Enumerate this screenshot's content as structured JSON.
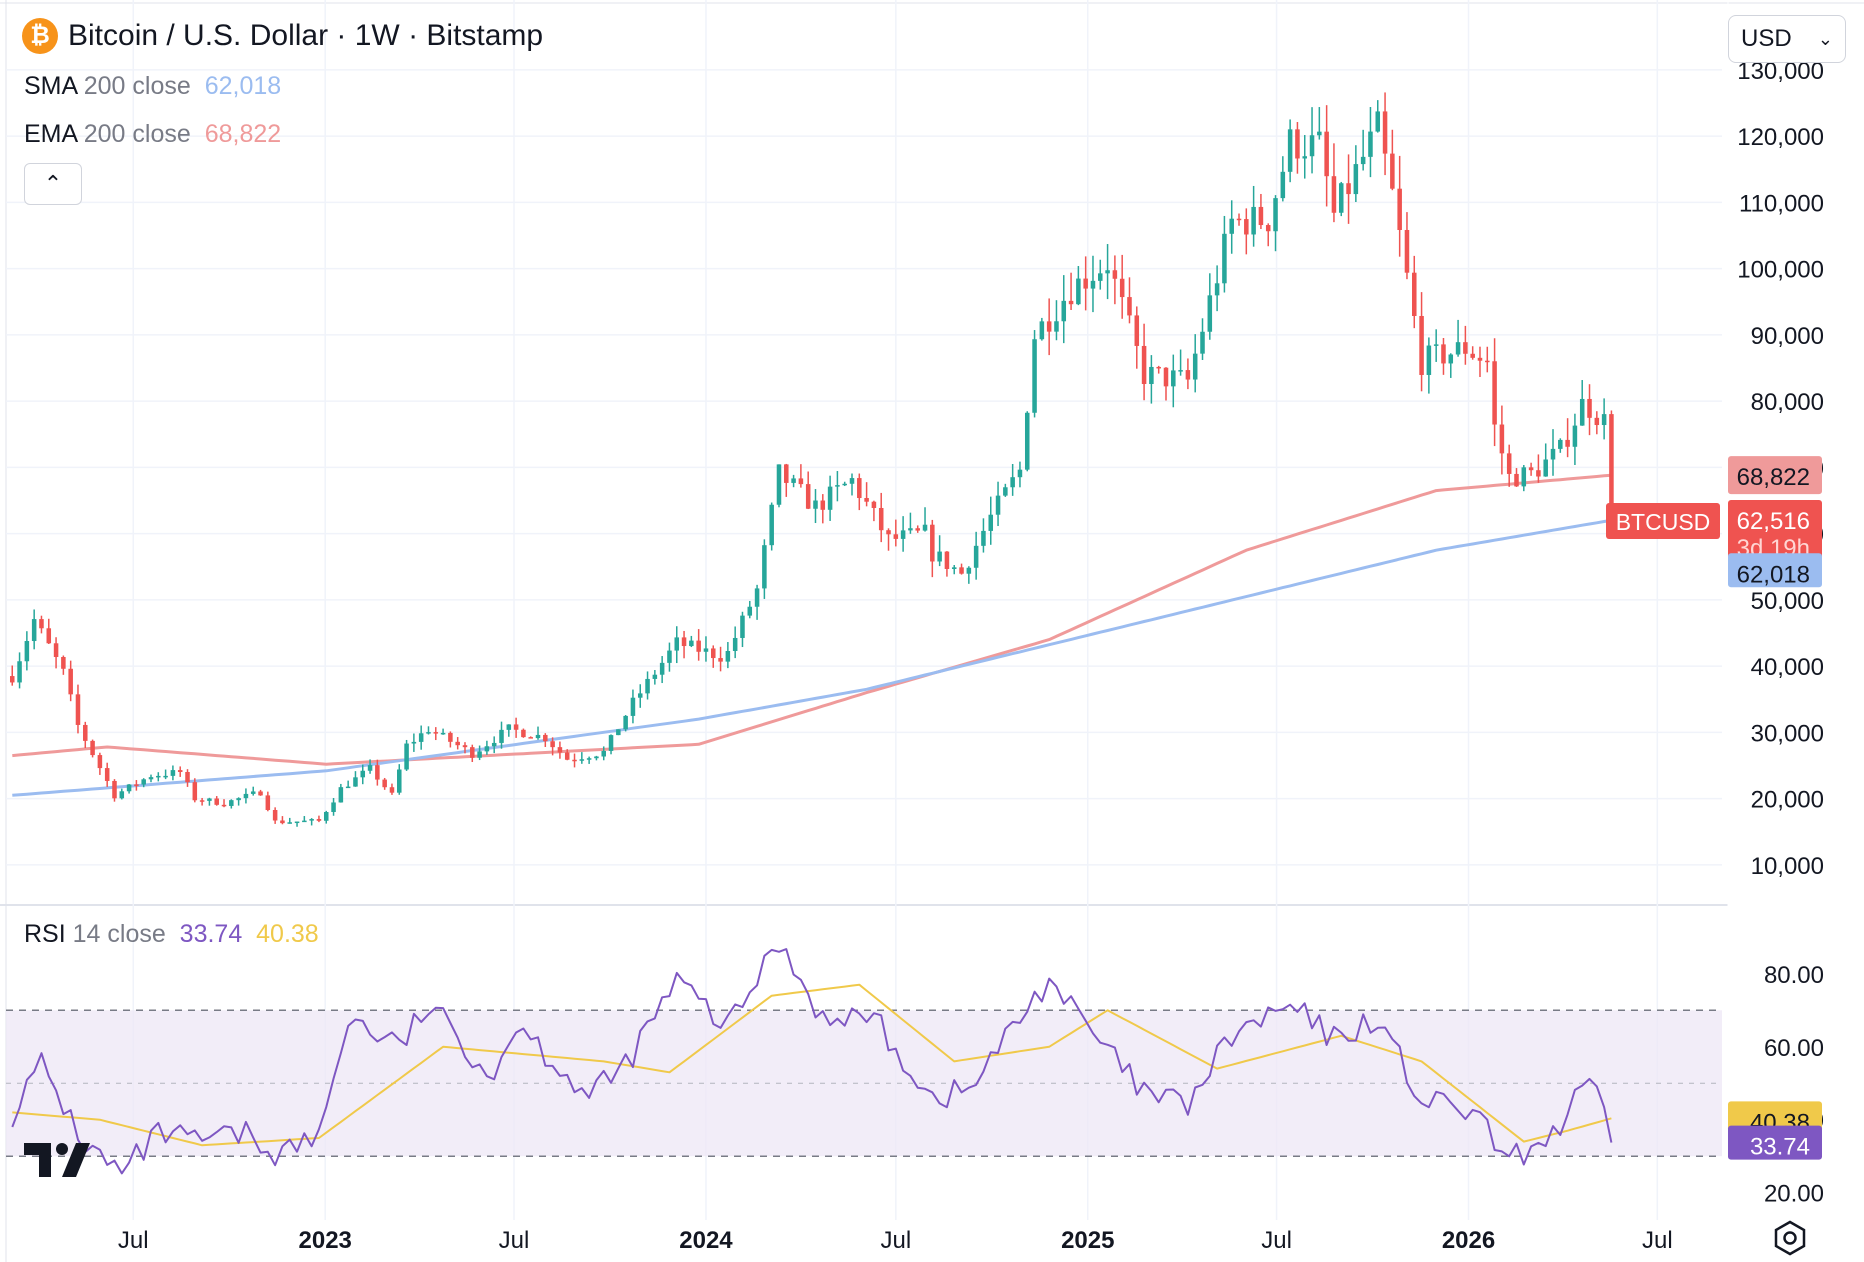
{
  "header": {
    "coin_symbol": "₿",
    "title": "Bitcoin / U.S. Dollar · 1W · Bitstamp",
    "currency_select": "USD"
  },
  "legend": {
    "sma_name": "SMA",
    "sma_params": "200 close",
    "sma_value": "62,018",
    "ema_name": "EMA",
    "ema_params": "200 close",
    "ema_value": "68,822",
    "rsi_name": "RSI",
    "rsi_params": "14 close",
    "rsi_value": "33.74",
    "rsi_ma_value": "40.38"
  },
  "colors": {
    "up": "#26a69a",
    "down": "#ef5350",
    "sma": "#9bbcf0",
    "ema": "#ef9a9a",
    "rsi": "#7e57c2",
    "rsi_ma": "#f0c94a",
    "rsi_band": "#ede7f6",
    "grid": "#f0f3fa",
    "axis_text": "#131722"
  },
  "chart_data": [
    {
      "type": "candlestick",
      "symbol": "BTCUSD",
      "interval": "1W",
      "exchange": "Bitstamp",
      "scale": "linear",
      "ylim": [
        5000,
        133000
      ],
      "yticks": [
        10000,
        20000,
        30000,
        40000,
        50000,
        60000,
        70000,
        80000,
        90000,
        100000,
        110000,
        120000,
        130000
      ],
      "ytick_labels": [
        "10,000",
        "20,000",
        "30,000",
        "40,000",
        "50,000",
        "60,000",
        "70,000",
        "80,000",
        "90,000",
        "100,000",
        "110,000",
        "120,000",
        "130,000"
      ],
      "x_range": [
        "2022-03-01",
        "2026-09-01"
      ],
      "x_ticks": [
        {
          "date": "2022-07-01",
          "label": "Jul",
          "bold": false
        },
        {
          "date": "2023-01-01",
          "label": "2023",
          "bold": true
        },
        {
          "date": "2023-07-01",
          "label": "Jul",
          "bold": false
        },
        {
          "date": "2024-01-01",
          "label": "2024",
          "bold": true
        },
        {
          "date": "2024-07-01",
          "label": "Jul",
          "bold": false
        },
        {
          "date": "2025-01-01",
          "label": "2025",
          "bold": true
        },
        {
          "date": "2025-07-01",
          "label": "Jul",
          "bold": false
        },
        {
          "date": "2026-01-01",
          "label": "2026",
          "bold": true
        },
        {
          "date": "2026-07-01",
          "label": "Jul",
          "bold": false
        }
      ],
      "close_anchors": [
        [
          "2022-03-07",
          38500
        ],
        [
          "2022-03-28",
          47000
        ],
        [
          "2022-04-25",
          39000
        ],
        [
          "2022-05-09",
          31000
        ],
        [
          "2022-06-13",
          20500
        ],
        [
          "2022-07-18",
          23500
        ],
        [
          "2022-08-15",
          24000
        ],
        [
          "2022-08-29",
          20000
        ],
        [
          "2022-09-26",
          19300
        ],
        [
          "2022-10-31",
          21000
        ],
        [
          "2022-11-14",
          16500
        ],
        [
          "2022-12-26",
          16600
        ],
        [
          "2023-01-16",
          21500
        ],
        [
          "2023-02-13",
          24500
        ],
        [
          "2023-03-06",
          20500
        ],
        [
          "2023-03-20",
          28000
        ],
        [
          "2023-04-10",
          30500
        ],
        [
          "2023-05-22",
          26800
        ],
        [
          "2023-06-26",
          30500
        ],
        [
          "2023-07-31",
          29200
        ],
        [
          "2023-08-21",
          26000
        ],
        [
          "2023-09-25",
          27000
        ],
        [
          "2023-10-23",
          34500
        ],
        [
          "2023-12-04",
          43500
        ],
        [
          "2023-12-25",
          42500
        ],
        [
          "2024-01-15",
          41500
        ],
        [
          "2024-01-22",
          42000
        ],
        [
          "2024-02-19",
          51500
        ],
        [
          "2024-03-11",
          69000
        ],
        [
          "2024-04-15",
          64000
        ],
        [
          "2024-05-20",
          68000
        ],
        [
          "2024-06-24",
          59000
        ],
        [
          "2024-07-29",
          60000
        ],
        [
          "2024-08-05",
          57000
        ],
        [
          "2024-09-02",
          54000
        ],
        [
          "2024-09-30",
          62500
        ],
        [
          "2024-10-28",
          69500
        ],
        [
          "2024-11-11",
          90000
        ],
        [
          "2024-12-16",
          97000
        ],
        [
          "2025-01-20",
          101000
        ],
        [
          "2025-02-24",
          84000
        ],
        [
          "2025-04-07",
          83000
        ],
        [
          "2025-05-19",
          107000
        ],
        [
          "2025-06-23",
          107500
        ],
        [
          "2025-07-14",
          119000
        ],
        [
          "2025-08-11",
          118500
        ],
        [
          "2025-08-25",
          108000
        ],
        [
          "2025-10-06",
          121000
        ],
        [
          "2025-10-20",
          111000
        ],
        [
          "2025-11-17",
          86000
        ],
        [
          "2025-12-29",
          88000
        ],
        [
          "2026-01-19",
          86000
        ],
        [
          "2026-01-26",
          76000
        ],
        [
          "2026-02-09",
          68500
        ],
        [
          "2026-03-02",
          69000
        ],
        [
          "2026-03-30",
          72500
        ],
        [
          "2026-04-20",
          79500
        ],
        [
          "2026-04-27",
          79000
        ],
        [
          "2026-05-11",
          77000
        ],
        [
          "2026-05-18",
          62516
        ]
      ],
      "sma_200_anchors": [
        [
          "2022-03-07",
          20500
        ],
        [
          "2023-01-02",
          24200
        ],
        [
          "2023-12-25",
          32000
        ],
        [
          "2024-06-03",
          36500
        ],
        [
          "2024-12-02",
          43500
        ],
        [
          "2025-06-02",
          50500
        ],
        [
          "2025-12-01",
          57500
        ],
        [
          "2026-05-18",
          62018
        ]
      ],
      "ema_200_anchors": [
        [
          "2022-03-07",
          26500
        ],
        [
          "2022-06-06",
          27800
        ],
        [
          "2023-01-02",
          25200
        ],
        [
          "2023-12-25",
          28200
        ],
        [
          "2024-06-03",
          36000
        ],
        [
          "2024-11-25",
          44000
        ],
        [
          "2025-06-02",
          57500
        ],
        [
          "2025-12-01",
          66500
        ],
        [
          "2026-05-18",
          68822
        ]
      ],
      "last_price": {
        "symbol": "BTCUSD",
        "value": "62,516",
        "countdown": "3d 19h"
      },
      "sma_label": "62,018",
      "ema_label": "68,822"
    },
    {
      "type": "line",
      "name": "RSI 14 close",
      "ylim": [
        18,
        92
      ],
      "yticks": [
        20,
        40,
        60,
        80
      ],
      "ytick_labels": [
        "20.00",
        "40.00",
        "60.00",
        "80.00"
      ],
      "band": [
        30,
        70
      ],
      "midline": 50,
      "rsi_anchors": [
        [
          "2022-03-07",
          42
        ],
        [
          "2022-04-04",
          55
        ],
        [
          "2022-05-16",
          33
        ],
        [
          "2022-06-20",
          25
        ],
        [
          "2022-07-25",
          36
        ],
        [
          "2022-08-29",
          34
        ],
        [
          "2022-10-17",
          36
        ],
        [
          "2022-11-14",
          31
        ],
        [
          "2022-12-26",
          35
        ],
        [
          "2023-01-23",
          68
        ],
        [
          "2023-03-13",
          60
        ],
        [
          "2023-04-10",
          71
        ],
        [
          "2023-06-12",
          52
        ],
        [
          "2023-07-03",
          67
        ],
        [
          "2023-09-11",
          46
        ],
        [
          "2023-10-16",
          55
        ],
        [
          "2023-12-04",
          78
        ],
        [
          "2024-01-22",
          65
        ],
        [
          "2024-03-11",
          89
        ],
        [
          "2024-04-29",
          65
        ],
        [
          "2024-06-03",
          70
        ],
        [
          "2024-08-05",
          46
        ],
        [
          "2024-09-09",
          48
        ],
        [
          "2024-11-25",
          79
        ],
        [
          "2024-12-23",
          68
        ],
        [
          "2025-02-24",
          47
        ],
        [
          "2025-04-07",
          44
        ],
        [
          "2025-05-19",
          63
        ],
        [
          "2025-07-14",
          71
        ],
        [
          "2025-08-25",
          62
        ],
        [
          "2025-10-06",
          68
        ],
        [
          "2025-11-17",
          45
        ],
        [
          "2026-01-05",
          42
        ],
        [
          "2026-02-09",
          28
        ],
        [
          "2026-03-30",
          38
        ],
        [
          "2026-04-27",
          51
        ],
        [
          "2026-05-18",
          33.74
        ]
      ],
      "rsi_ma_anchors": [
        [
          "2022-03-07",
          42
        ],
        [
          "2022-05-30",
          40
        ],
        [
          "2022-09-05",
          33
        ],
        [
          "2022-12-26",
          35
        ],
        [
          "2023-04-24",
          60
        ],
        [
          "2023-09-25",
          56
        ],
        [
          "2023-11-27",
          53
        ],
        [
          "2024-03-04",
          74
        ],
        [
          "2024-05-27",
          77
        ],
        [
          "2024-08-26",
          56
        ],
        [
          "2024-11-25",
          60
        ],
        [
          "2025-01-20",
          70
        ],
        [
          "2025-05-05",
          54
        ],
        [
          "2025-09-01",
          63
        ],
        [
          "2025-11-17",
          56
        ],
        [
          "2026-02-23",
          34
        ],
        [
          "2026-04-06",
          37
        ],
        [
          "2026-05-18",
          40.38
        ]
      ],
      "rsi_label": "33.74",
      "rsi_ma_label": "40.38"
    }
  ]
}
